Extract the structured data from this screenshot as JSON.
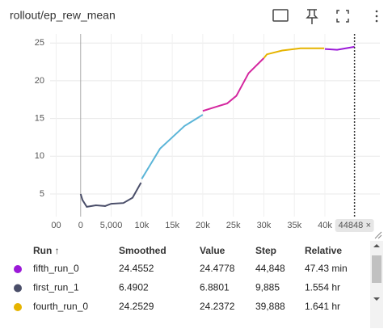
{
  "chart_data": {
    "type": "line",
    "title": "rollout/ep_rew_mean",
    "xlim": [
      -5000,
      49000
    ],
    "ylim": [
      2,
      26.2
    ],
    "xticks": [
      {
        "value": -4000,
        "label": "00"
      },
      0,
      {
        "value": 5000,
        "label": "5,000"
      },
      {
        "value": 10000,
        "label": "10k"
      },
      {
        "value": 15000,
        "label": "15k"
      },
      {
        "value": 20000,
        "label": "20k"
      },
      {
        "value": 25000,
        "label": "25k"
      },
      {
        "value": 30000,
        "label": "30k"
      },
      {
        "value": 35000,
        "label": "35k"
      },
      {
        "value": 40000,
        "label": "40k"
      }
    ],
    "yticks": [
      5,
      10,
      15,
      20,
      25
    ],
    "cursor_x": 44848,
    "series": [
      {
        "name": "first_run_1",
        "color": "#4a4e69",
        "x": [
          0,
          300,
          1000,
          2500,
          4000,
          5000,
          7000,
          8500,
          9885
        ],
        "values": [
          5,
          4.2,
          3.3,
          3.5,
          3.4,
          3.7,
          3.8,
          4.5,
          6.5
        ]
      },
      {
        "color": "#5bb5d8",
        "x": [
          10000,
          11500,
          13000,
          15000,
          17000,
          19000,
          20000
        ],
        "values": [
          7,
          9,
          11,
          12.5,
          14,
          15,
          15.5
        ]
      },
      {
        "color": "#d4279f",
        "x": [
          20000,
          22000,
          24000,
          25500,
          27500,
          30000
        ],
        "values": [
          16,
          16.5,
          17,
          18,
          21,
          23
        ]
      },
      {
        "name": "fourth_run_0",
        "color": "#e6b400",
        "x": [
          30000,
          30500,
          33000,
          36000,
          39888
        ],
        "values": [
          23,
          23.5,
          24,
          24.3,
          24.3
        ]
      },
      {
        "name": "fifth_run_0",
        "color": "#9b19d8",
        "x": [
          40000,
          42000,
          44848
        ],
        "values": [
          24.2,
          24.1,
          24.5
        ]
      }
    ]
  },
  "table": {
    "headers": [
      "Run ↑",
      "Smoothed",
      "Value",
      "Step",
      "Relative"
    ],
    "rows": [
      {
        "color": "#9b19d8",
        "cells": [
          "fifth_run_0",
          "24.4552",
          "24.4778",
          "44,848",
          "47.43 min"
        ]
      },
      {
        "color": "#4a4e69",
        "cells": [
          "first_run_1",
          "6.4902",
          "6.8801",
          "9,885",
          "1.554 hr"
        ]
      },
      {
        "color": "#e6b400",
        "cells": [
          "fourth_run_0",
          "24.2529",
          "24.2372",
          "39,888",
          "1.641 hr"
        ]
      }
    ]
  }
}
